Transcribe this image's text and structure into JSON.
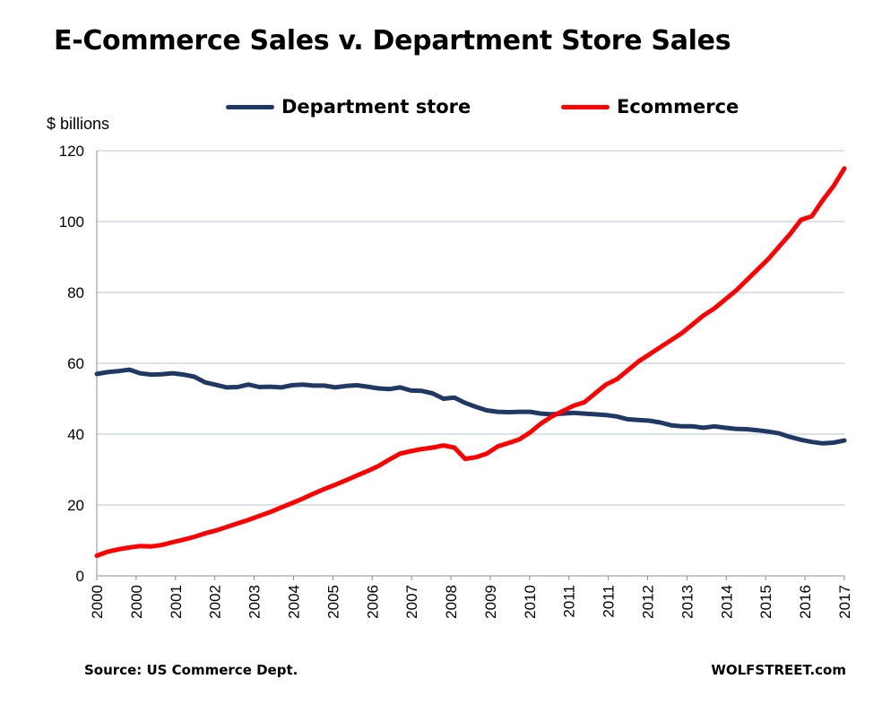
{
  "chart_data": {
    "type": "line",
    "title": "E-Commerce Sales v. Department Store Sales",
    "ylabel": "$ billions",
    "xlabel": "",
    "ylim": [
      0,
      120
    ],
    "yticks": [
      0,
      20,
      40,
      60,
      80,
      100,
      120
    ],
    "xlim": [
      2000.0,
      2017.25
    ],
    "xtick_labels": [
      "2000",
      "2000",
      "2001",
      "2002",
      "2003",
      "2004",
      "2005",
      "2006",
      "2007",
      "2008",
      "2009",
      "2010",
      "2011",
      "2011",
      "2012",
      "2013",
      "2014",
      "2015",
      "2016",
      "2017"
    ],
    "grid": "horizontal",
    "legend_position": "top",
    "source": "Source: US Commerce Dept.",
    "brand": "WOLFSTREET.com",
    "series": [
      {
        "name": "Department store",
        "color": "#1f3864",
        "x": [
          2000.0,
          2000.25,
          2000.5,
          2000.75,
          2001.0,
          2001.25,
          2001.5,
          2001.75,
          2002.0,
          2002.25,
          2002.5,
          2002.75,
          2003.0,
          2003.25,
          2003.5,
          2003.75,
          2004.0,
          2004.25,
          2004.5,
          2004.75,
          2005.0,
          2005.25,
          2005.5,
          2005.75,
          2006.0,
          2006.25,
          2006.5,
          2006.75,
          2007.0,
          2007.25,
          2007.5,
          2007.75,
          2008.0,
          2008.25,
          2008.5,
          2008.75,
          2009.0,
          2009.25,
          2009.5,
          2009.75,
          2010.0,
          2010.25,
          2010.5,
          2010.75,
          2011.0,
          2011.25,
          2011.5,
          2011.75,
          2012.0,
          2012.25,
          2012.5,
          2012.75,
          2013.0,
          2013.25,
          2013.5,
          2013.75,
          2014.0,
          2014.25,
          2014.5,
          2014.75,
          2015.0,
          2015.25,
          2015.5,
          2015.75,
          2016.0,
          2016.25,
          2016.5,
          2016.75,
          2017.0,
          2017.25
        ],
        "values": [
          57,
          57.5,
          57.8,
          58.2,
          57.2,
          56.8,
          56.9,
          57.2,
          56.8,
          56.2,
          54.6,
          53.9,
          53.2,
          53.3,
          54,
          53.3,
          53.4,
          53.2,
          53.8,
          54,
          53.7,
          53.7,
          53.2,
          53.6,
          53.8,
          53.4,
          52.9,
          52.7,
          53.2,
          52.3,
          52.2,
          51.5,
          50,
          50.3,
          48.8,
          47.7,
          46.7,
          46.3,
          46.2,
          46.3,
          46.3,
          45.8,
          45.6,
          45.8,
          46,
          45.8,
          45.6,
          45.4,
          45,
          44.2,
          44,
          43.8,
          43.3,
          42.5,
          42.2,
          42.2,
          41.8,
          42.2,
          41.8,
          41.5,
          41.4,
          41.1,
          40.7,
          40.2,
          39.2,
          38.4,
          37.8,
          37.4,
          37.6,
          38.2
        ]
      },
      {
        "name": "Ecommerce",
        "color": "#ff0000",
        "x": [
          2000.0,
          2000.25,
          2000.5,
          2000.75,
          2001.0,
          2001.25,
          2001.5,
          2001.75,
          2002.0,
          2002.25,
          2002.5,
          2002.75,
          2003.0,
          2003.25,
          2003.5,
          2003.75,
          2004.0,
          2004.25,
          2004.5,
          2004.75,
          2005.0,
          2005.25,
          2005.5,
          2005.75,
          2006.0,
          2006.25,
          2006.5,
          2006.75,
          2007.0,
          2007.25,
          2007.5,
          2007.75,
          2008.0,
          2008.25,
          2008.5,
          2008.75,
          2009.0,
          2009.25,
          2009.5,
          2009.75,
          2010.0,
          2010.25,
          2010.5,
          2010.75,
          2011.0,
          2011.25,
          2011.5,
          2011.75,
          2012.0,
          2012.25,
          2012.5,
          2012.75,
          2013.0,
          2013.25,
          2013.5,
          2013.75,
          2014.0,
          2014.25,
          2014.5,
          2014.75,
          2015.0,
          2015.25,
          2015.5,
          2015.75,
          2016.0,
          2016.25,
          2016.5,
          2016.75,
          2017.0,
          2017.25
        ],
        "values": [
          5.7,
          6.8,
          7.5,
          8,
          8.4,
          8.3,
          8.7,
          9.5,
          10.2,
          11,
          12,
          12.8,
          13.8,
          14.8,
          15.8,
          16.9,
          18,
          19.3,
          20.5,
          21.8,
          23.2,
          24.5,
          25.7,
          27,
          28.3,
          29.6,
          31,
          32.8,
          34.5,
          35.2,
          35.8,
          36.2,
          36.8,
          36.2,
          33,
          33.5,
          34.5,
          36.5,
          37.5,
          38.5,
          40.5,
          43,
          45,
          46.5,
          48,
          49,
          51.5,
          54,
          55.5,
          58,
          60.5,
          62.5,
          64.5,
          66.5,
          68.5,
          71,
          73.5,
          75.5,
          78,
          80.5,
          83.5,
          86.5,
          89.5,
          93,
          96.5,
          100.5,
          101.5,
          106,
          110,
          115
        ]
      }
    ]
  }
}
